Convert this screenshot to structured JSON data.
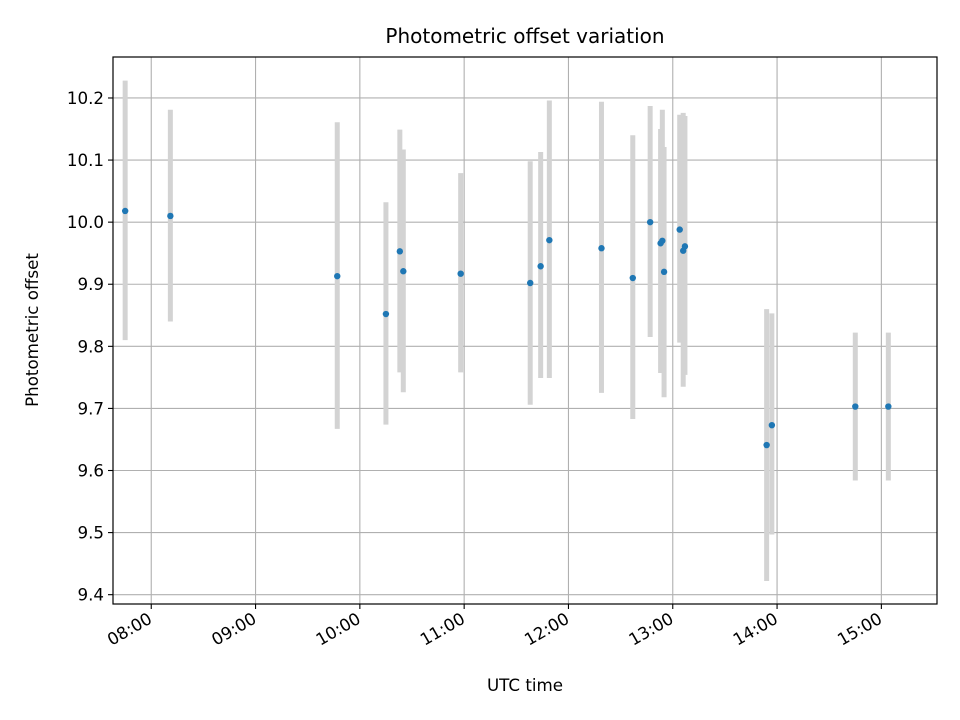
{
  "chart_data": {
    "type": "scatter",
    "title": "Photometric offset variation",
    "xlabel": "UTC time",
    "ylabel": "Photometric offset",
    "x_tick_labels": [
      "08:00",
      "09:00",
      "10:00",
      "11:00",
      "12:00",
      "13:00",
      "14:00",
      "15:00"
    ],
    "y_tick_labels": [
      "9.4",
      "9.5",
      "9.6",
      "9.7",
      "9.8",
      "9.9",
      "10.0",
      "10.1",
      "10.2"
    ],
    "x_ticks": [
      "08:00",
      "09:00",
      "10:00",
      "11:00",
      "12:00",
      "13:00",
      "14:00",
      "15:00"
    ],
    "y_ticks": [
      9.4,
      9.5,
      9.6,
      9.7,
      9.8,
      9.9,
      10.0,
      10.1,
      10.2
    ],
    "xlim": [
      "07:38",
      "15:32"
    ],
    "ylim": [
      9.385,
      10.266
    ],
    "grid": true,
    "marker_color": "#1f77b4",
    "errorbar_color": "#d3d3d3",
    "points": [
      {
        "x": "07:45",
        "y": 10.018,
        "low": 9.81,
        "high": 10.228
      },
      {
        "x": "08:11",
        "y": 10.01,
        "low": 9.84,
        "high": 10.181
      },
      {
        "x": "09:47",
        "y": 9.913,
        "low": 9.667,
        "high": 10.161
      },
      {
        "x": "10:15",
        "y": 9.852,
        "low": 9.674,
        "high": 10.032
      },
      {
        "x": "10:23",
        "y": 9.953,
        "low": 9.758,
        "high": 10.149
      },
      {
        "x": "10:25",
        "y": 9.921,
        "low": 9.726,
        "high": 10.117
      },
      {
        "x": "10:58",
        "y": 9.917,
        "low": 9.758,
        "high": 10.079
      },
      {
        "x": "11:38",
        "y": 9.902,
        "low": 9.706,
        "high": 10.098
      },
      {
        "x": "11:44",
        "y": 9.929,
        "low": 9.749,
        "high": 10.113
      },
      {
        "x": "11:49",
        "y": 9.971,
        "low": 9.749,
        "high": 10.196
      },
      {
        "x": "12:19",
        "y": 9.958,
        "low": 9.725,
        "high": 10.194
      },
      {
        "x": "12:37",
        "y": 9.91,
        "low": 9.683,
        "high": 10.14
      },
      {
        "x": "12:47",
        "y": 10.0,
        "low": 9.815,
        "high": 10.187
      },
      {
        "x": "12:53",
        "y": 9.966,
        "low": 9.757,
        "high": 10.15
      },
      {
        "x": "12:54",
        "y": 9.97,
        "low": 9.761,
        "high": 10.181
      },
      {
        "x": "12:55",
        "y": 9.92,
        "low": 9.718,
        "high": 10.121
      },
      {
        "x": "13:04",
        "y": 9.988,
        "low": 9.806,
        "high": 10.173
      },
      {
        "x": "13:06",
        "y": 9.954,
        "low": 9.735,
        "high": 10.176
      },
      {
        "x": "13:07",
        "y": 9.961,
        "low": 9.754,
        "high": 10.171
      },
      {
        "x": "13:54",
        "y": 9.641,
        "low": 9.422,
        "high": 9.86
      },
      {
        "x": "13:57",
        "y": 9.673,
        "low": 9.497,
        "high": 9.853
      },
      {
        "x": "14:45",
        "y": 9.703,
        "low": 9.584,
        "high": 9.822
      },
      {
        "x": "15:04",
        "y": 9.703,
        "low": 9.584,
        "high": 9.822
      }
    ]
  }
}
